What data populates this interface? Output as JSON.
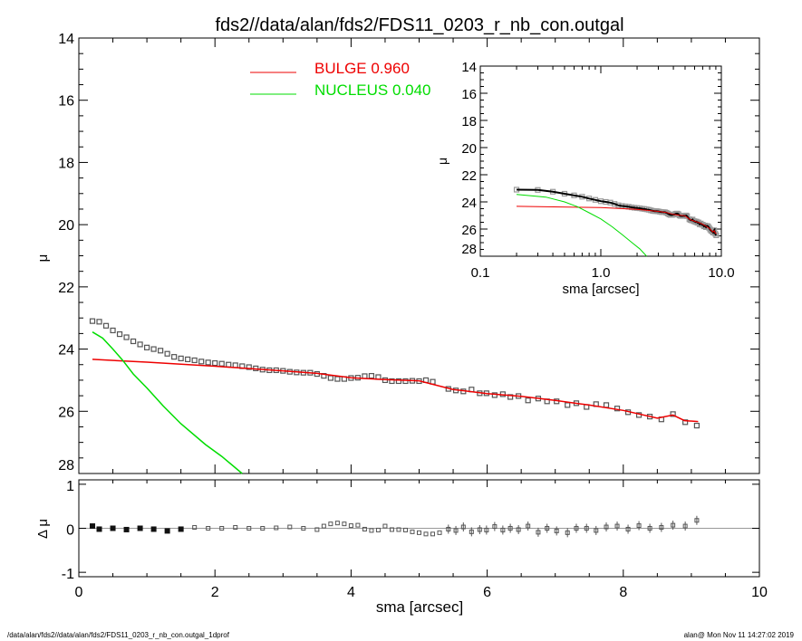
{
  "title": "fds2//data/alan/fds2/FDS11_0203_r_nb_con.outgal",
  "footer_left": "/data/alan/fds2//data/alan/fds2/FDS11_0203_r_nb_con.outgal_1dprof",
  "footer_right": "alan@  Mon Nov 11 14:27:02 2019",
  "colors": {
    "data": "#555555",
    "bulge": "#ee0000",
    "nucleus": "#00dd00",
    "axis": "#000000",
    "zero_line": "#999999"
  },
  "chart_data": [
    {
      "panel": "main",
      "type": "scatter",
      "xlabel": "",
      "ylabel": "μ",
      "xlim": [
        0,
        10
      ],
      "ylim": [
        14,
        28
      ],
      "y_inverted": true,
      "x_ticks": [
        "0",
        "2",
        "4",
        "6",
        "8",
        "10"
      ],
      "y_ticks": [
        "14",
        "16",
        "18",
        "20",
        "22",
        "24",
        "26",
        "28"
      ],
      "legend": {
        "placement": "top-center",
        "entries": [
          {
            "label": "BULGE  0.960",
            "color": "#ee0000"
          },
          {
            "label": "NUCLEUS  0.040",
            "color": "#00dd00"
          }
        ]
      },
      "observed": {
        "x": [
          0.2,
          0.3,
          0.4,
          0.5,
          0.6,
          0.7,
          0.8,
          0.9,
          1.0,
          1.1,
          1.2,
          1.3,
          1.4,
          1.5,
          1.6,
          1.7,
          1.8,
          1.9,
          2.0,
          2.1,
          2.2,
          2.3,
          2.4,
          2.5,
          2.6,
          2.7,
          2.8,
          2.9,
          3.0,
          3.1,
          3.2,
          3.3,
          3.4,
          3.5,
          3.6,
          3.7,
          3.8,
          3.9,
          4.0,
          4.1,
          4.2,
          4.3,
          4.4,
          4.5,
          4.6,
          4.7,
          4.8,
          4.9,
          5.0,
          5.1,
          5.2,
          5.43,
          5.54,
          5.65,
          5.77,
          5.89,
          5.99,
          6.11,
          6.23,
          6.34,
          6.46,
          6.6,
          6.75,
          6.88,
          7.02,
          7.18,
          7.31,
          7.46,
          7.6,
          7.75,
          7.91,
          8.07,
          8.23,
          8.39,
          8.56,
          8.73,
          8.91,
          9.08
        ],
        "y": [
          23.1,
          23.12,
          23.25,
          23.4,
          23.52,
          23.62,
          23.75,
          23.85,
          23.95,
          24.0,
          24.05,
          24.15,
          24.25,
          24.3,
          24.33,
          24.36,
          24.4,
          24.43,
          24.45,
          24.47,
          24.5,
          24.52,
          24.55,
          24.58,
          24.62,
          24.66,
          24.68,
          24.68,
          24.7,
          24.73,
          24.75,
          24.76,
          24.76,
          24.8,
          24.86,
          24.93,
          24.96,
          24.96,
          24.93,
          24.92,
          24.87,
          24.86,
          24.9,
          25.0,
          25.03,
          25.03,
          25.03,
          25.02,
          25.03,
          25.0,
          25.05,
          25.28,
          25.33,
          25.36,
          25.3,
          25.42,
          25.42,
          25.48,
          25.45,
          25.54,
          25.51,
          25.65,
          25.59,
          25.68,
          25.68,
          25.8,
          25.74,
          25.86,
          25.77,
          25.8,
          25.91,
          26.03,
          26.12,
          26.17,
          26.26,
          26.09,
          26.35,
          26.46
        ]
      },
      "bulge": {
        "x": [
          0.2,
          1.0,
          2.0,
          3.0,
          3.5,
          4.0,
          4.5,
          5.0,
          5.5,
          6.0,
          6.5,
          7.0,
          7.5,
          8.0,
          8.5,
          8.73,
          8.9,
          9.1
        ],
        "y": [
          24.33,
          24.42,
          24.55,
          24.7,
          24.78,
          24.92,
          24.98,
          25.02,
          25.3,
          25.43,
          25.52,
          25.65,
          25.8,
          25.97,
          26.22,
          26.12,
          26.3,
          26.33
        ]
      },
      "nucleus": {
        "x": [
          0.2,
          0.35,
          0.5,
          0.64,
          0.8,
          1.0,
          1.24,
          1.5,
          1.86,
          2.1,
          2.4
        ],
        "y": [
          23.45,
          23.65,
          24.0,
          24.35,
          24.8,
          25.25,
          25.83,
          26.4,
          27.07,
          27.45,
          28.0
        ]
      }
    },
    {
      "panel": "residual",
      "type": "scatter",
      "xlabel": "sma [arcsec]",
      "ylabel": "Δ μ",
      "xlim": [
        0,
        10
      ],
      "ylim": [
        -1,
        1
      ],
      "x_ticks": [
        "0",
        "2",
        "4",
        "6",
        "8",
        "10"
      ],
      "y_ticks": [
        "-1",
        "0",
        "1"
      ],
      "x": [
        0.2,
        0.3,
        0.5,
        0.7,
        0.9,
        1.1,
        1.3,
        1.5,
        1.7,
        1.9,
        2.1,
        2.3,
        2.5,
        2.7,
        2.9,
        3.1,
        3.3,
        3.5,
        3.6,
        3.7,
        3.8,
        3.9,
        4.0,
        4.1,
        4.2,
        4.3,
        4.4,
        4.5,
        4.6,
        4.7,
        4.8,
        4.9,
        5.0,
        5.1,
        5.2,
        5.3,
        5.43,
        5.54,
        5.65,
        5.77,
        5.89,
        5.99,
        6.11,
        6.23,
        6.34,
        6.46,
        6.6,
        6.75,
        6.88,
        7.02,
        7.18,
        7.31,
        7.46,
        7.6,
        7.75,
        7.91,
        8.07,
        8.23,
        8.39,
        8.56,
        8.73,
        8.91,
        9.08
      ],
      "y": [
        0.05,
        -0.02,
        0.0,
        -0.03,
        0.0,
        -0.02,
        -0.06,
        -0.02,
        0.02,
        0.0,
        0.0,
        0.02,
        0.0,
        0.0,
        0.01,
        0.03,
        0.0,
        -0.03,
        0.05,
        0.1,
        0.12,
        0.1,
        0.06,
        0.07,
        -0.02,
        -0.05,
        -0.04,
        0.05,
        -0.03,
        -0.03,
        -0.04,
        -0.08,
        -0.1,
        -0.13,
        -0.13,
        -0.1,
        -0.02,
        -0.05,
        0.03,
        -0.08,
        -0.03,
        -0.04,
        0.04,
        -0.04,
        0.0,
        -0.03,
        0.05,
        -0.09,
        0.0,
        -0.06,
        -0.1,
        0.0,
        0.0,
        -0.05,
        0.03,
        0.05,
        -0.02,
        0.06,
        0.0,
        0.02,
        0.07,
        0.05,
        0.18
      ]
    },
    {
      "panel": "inset",
      "type": "scatter",
      "xlabel": "sma [arcsec]",
      "ylabel": "μ",
      "xscale": "log",
      "xlim": [
        0.1,
        10.0
      ],
      "ylim": [
        14,
        28
      ],
      "y_inverted": true,
      "x_ticks": [
        "0.1",
        "1.0",
        "10.0"
      ],
      "y_ticks": [
        "14",
        "16",
        "18",
        "20",
        "22",
        "24",
        "26",
        "28"
      ],
      "note_series": "same observed / bulge / nucleus data as main panel, log x-axis"
    }
  ]
}
